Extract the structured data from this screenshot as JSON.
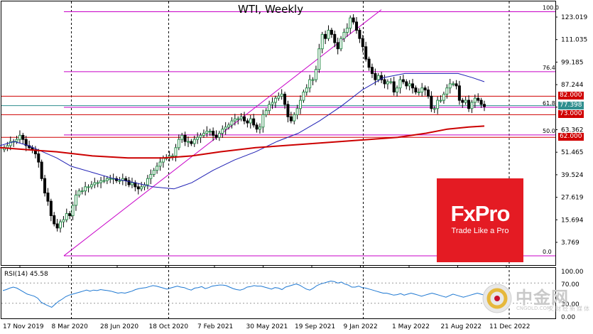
{
  "chart_data": [
    {
      "type": "candlestick",
      "title": "WTI, Weekly",
      "ylim": [
        0,
        128
      ],
      "y_ticks": [
        "123.019",
        "111.035",
        "99.185",
        "87.244",
        "75.303",
        "63.362",
        "51.465",
        "39.524",
        "27.619",
        "15.694",
        "3.769"
      ],
      "x_ticks": [
        "17 Nov 2019",
        "8 Mar 2020",
        "28 Jun 2020",
        "18 Oct 2020",
        "7 Feb 2021",
        "30 May 2021",
        "19 Sep 2021",
        "9 Jan 2022",
        "1 May 2022",
        "21 Aug 2022",
        "11 Dec 2022"
      ],
      "vertical_lines": [
        "8 Mar 2020",
        "18 Oct 2020",
        "9 Jan 2022",
        "11 Dec 2022"
      ],
      "horizontal_levels": [
        {
          "label": "82.000",
          "value": 82,
          "color": "#d00000"
        },
        {
          "label": "73.000",
          "value": 73,
          "color": "#d00000"
        },
        {
          "label": "62.000",
          "value": 62,
          "color": "#d00000"
        }
      ],
      "current_price": {
        "label": "77.398",
        "value": 77.398,
        "color": "#2f8f8f"
      },
      "fibonacci": [
        {
          "level": "100.0",
          "value": 123.0
        },
        {
          "level": "76.4",
          "value": 93.9
        },
        {
          "level": "61.8",
          "value": 76.6
        },
        {
          "level": "50.0",
          "value": 63.2
        },
        {
          "level": "0.0",
          "value": 4.5
        }
      ],
      "trendline": [
        [
          90,
          4.5
        ],
        [
          537,
          124
        ]
      ],
      "closes": [
        57,
        58,
        60,
        60,
        61,
        63,
        61,
        58,
        57,
        56,
        54,
        50,
        42,
        35,
        31,
        24,
        20,
        18,
        21,
        22,
        25,
        24,
        29,
        34,
        36,
        36,
        38,
        38,
        39,
        40,
        40,
        41,
        41,
        42,
        42,
        42,
        41,
        41,
        42,
        41,
        39,
        40,
        38,
        37,
        38,
        39,
        42,
        44,
        46,
        48,
        50,
        52,
        52,
        53,
        53,
        57,
        61,
        63,
        60,
        60,
        59,
        61,
        62,
        63,
        64,
        65,
        65,
        63,
        62,
        64,
        66,
        67,
        68,
        70,
        71,
        71,
        72,
        70,
        69,
        71,
        68,
        66,
        67,
        73,
        75,
        78,
        79,
        81,
        82,
        83,
        78,
        72,
        70,
        73,
        76,
        80,
        84,
        86,
        90,
        90,
        95,
        105,
        112,
        110,
        114,
        112,
        108,
        105,
        110,
        113,
        115,
        120,
        118,
        114,
        110,
        106,
        100,
        96,
        93,
        90,
        92,
        90,
        88,
        89,
        89,
        84,
        86,
        90,
        89,
        87,
        88,
        86,
        84,
        84,
        86,
        85,
        82,
        76,
        76,
        80,
        80,
        83,
        86,
        88,
        88,
        87,
        80,
        79,
        80,
        76,
        79,
        81,
        80,
        78,
        77
      ],
      "series": [
        {
          "name": "MA",
          "color": "#1f1fb4",
          "values": [
            [
              0,
              58
            ],
            [
              20,
              60
            ],
            [
              40,
              58
            ],
            [
              60,
              55
            ],
            [
              80,
              52
            ],
            [
              100,
              48
            ],
            [
              130,
              45
            ],
            [
              160,
              42
            ],
            [
              190,
              40
            ],
            [
              215,
              38
            ],
            [
              245,
              37
            ],
            [
              270,
              40
            ],
            [
              300,
              46
            ],
            [
              330,
              51
            ],
            [
              360,
              55
            ],
            [
              390,
              60
            ],
            [
              420,
              64
            ],
            [
              450,
              70
            ],
            [
              480,
              77
            ],
            [
              510,
              85
            ],
            [
              540,
              91
            ],
            [
              570,
              93
            ],
            [
              600,
              93
            ],
            [
              625,
              93
            ],
            [
              645,
              93
            ],
            [
              665,
              91
            ],
            [
              682,
              89
            ]
          ]
        },
        {
          "name": "MA",
          "color": "#cc0000",
          "values": [
            [
              0,
              57
            ],
            [
              40,
              56
            ],
            [
              80,
              55
            ],
            [
              130,
              53
            ],
            [
              180,
              52
            ],
            [
              230,
              52
            ],
            [
              270,
              53
            ],
            [
              310,
              55
            ],
            [
              360,
              57
            ],
            [
              400,
              58
            ],
            [
              440,
              59
            ],
            [
              480,
              60
            ],
            [
              520,
              61
            ],
            [
              560,
              62
            ],
            [
              600,
              64
            ],
            [
              630,
              66
            ],
            [
              660,
              67
            ],
            [
              682,
              67.5
            ]
          ]
        }
      ]
    },
    {
      "type": "line",
      "title": "RSI(14) 45.58",
      "ylim": [
        0,
        100
      ],
      "y_ticks": [
        "100.00",
        "70.00",
        "30.00",
        "0.00"
      ],
      "series": [
        {
          "name": "RSI(14)",
          "color": "#1e78d2",
          "values": [
            55,
            57,
            60,
            62,
            60,
            56,
            52,
            48,
            46,
            44,
            40,
            32,
            28,
            25,
            22,
            28,
            34,
            38,
            43,
            46,
            48,
            50,
            52,
            54,
            56,
            54,
            56,
            55,
            57,
            56,
            55,
            54,
            52,
            50,
            51,
            50,
            52,
            54,
            57,
            59,
            60,
            61,
            63,
            65,
            64,
            62,
            60,
            58,
            60,
            62,
            64,
            62,
            61,
            58,
            56,
            60,
            61,
            63,
            59,
            61,
            64,
            65,
            66,
            66,
            65,
            62,
            59,
            57,
            56,
            58,
            62,
            63,
            65,
            64,
            64,
            62,
            60,
            58,
            61,
            60,
            57,
            62,
            64,
            66,
            68,
            66,
            62,
            58,
            56,
            60,
            65,
            68,
            70,
            72,
            74,
            73,
            70,
            72,
            68,
            66,
            62,
            62,
            64,
            61,
            60,
            58,
            56,
            54,
            52,
            50,
            50,
            48,
            46,
            47,
            49,
            46,
            48,
            50,
            48,
            46,
            44,
            46,
            48,
            50,
            48,
            46,
            44,
            42,
            45,
            48,
            46,
            44,
            42,
            44,
            46,
            48,
            50,
            48,
            46
          ]
        }
      ]
    }
  ],
  "logo": {
    "name": "FxPro",
    "tagline": "Trade Like a Pro"
  },
  "watermark": {
    "cn": "中金网",
    "site": "CNGOLD.COM",
    "sub": "文财经新媒体"
  }
}
